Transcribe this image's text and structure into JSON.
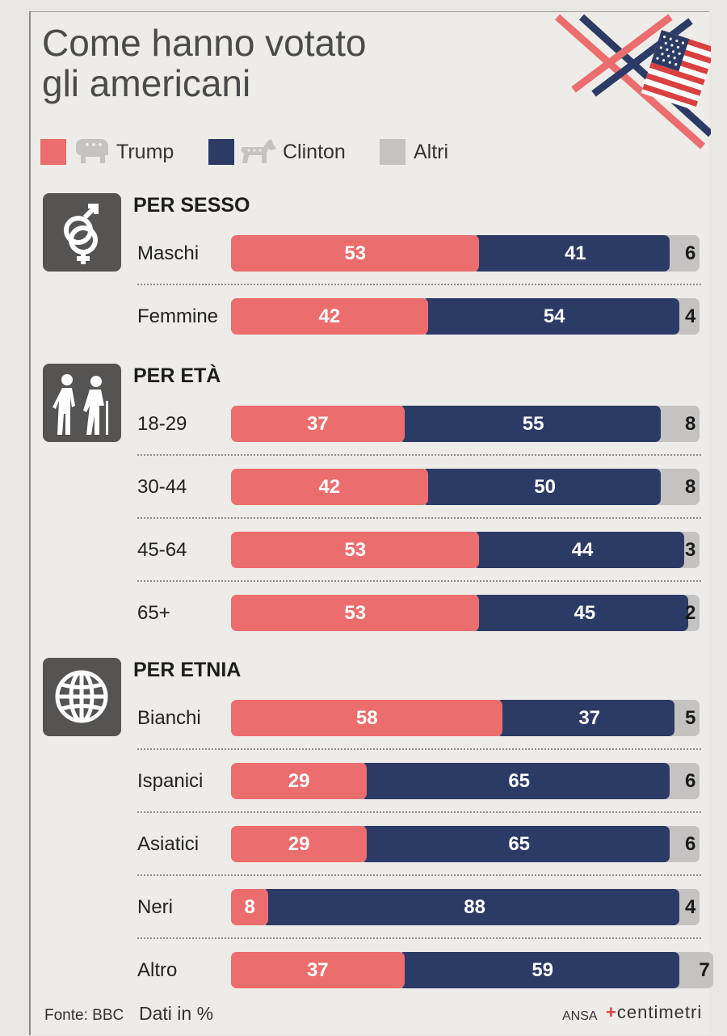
{
  "title_line1": "Come hanno votato",
  "title_line2": "gli americani",
  "legend": [
    {
      "label": "Trump",
      "color": "#ec6d6d",
      "icon": "elephant-icon"
    },
    {
      "label": "Clinton",
      "color": "#2c3b66",
      "icon": "donkey-icon"
    },
    {
      "label": "Altri",
      "color": "#c4c3c1"
    }
  ],
  "chart_data": {
    "type": "bar",
    "orientation": "horizontal",
    "stacked": true,
    "series_names": [
      "Trump",
      "Clinton",
      "Altri"
    ],
    "sections": [
      {
        "title": "PER SESSO",
        "icon": "gender-icon",
        "rows": [
          {
            "label": "Maschi",
            "values": [
              53,
              41,
              6
            ]
          },
          {
            "label": "Femmine",
            "values": [
              42,
              54,
              4
            ]
          }
        ]
      },
      {
        "title": "PER ETÀ",
        "icon": "elderly-people-icon",
        "rows": [
          {
            "label": "18-29",
            "values": [
              37,
              55,
              8
            ]
          },
          {
            "label": "30-44",
            "values": [
              42,
              50,
              8
            ]
          },
          {
            "label": "45-64",
            "values": [
              53,
              44,
              3
            ]
          },
          {
            "label": "65+",
            "values": [
              53,
              45,
              2
            ]
          }
        ]
      },
      {
        "title": "PER ETNIA",
        "icon": "globe-icon",
        "rows": [
          {
            "label": "Bianchi",
            "values": [
              58,
              37,
              5
            ]
          },
          {
            "label": "Ispanici",
            "values": [
              29,
              65,
              6
            ]
          },
          {
            "label": "Asiatici",
            "values": [
              29,
              65,
              6
            ]
          },
          {
            "label": "Neri",
            "values": [
              8,
              88,
              4
            ]
          },
          {
            "label": "Altro",
            "values": [
              37,
              59,
              7
            ]
          }
        ]
      }
    ]
  },
  "footer": {
    "source": "Fonte: BBC",
    "units": "Dati in %",
    "agency": "ANSA",
    "brand": "centimetri"
  }
}
